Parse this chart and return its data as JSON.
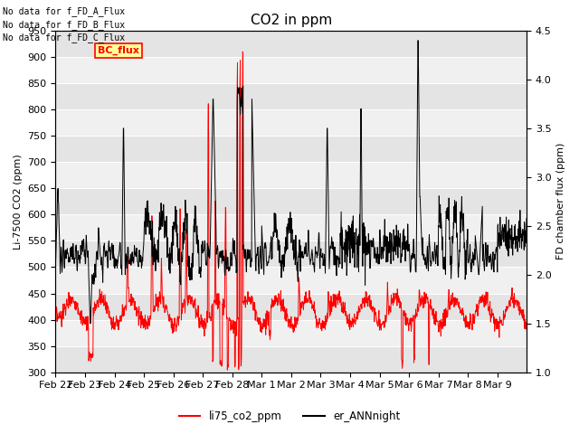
{
  "title": "CO2 in ppm",
  "ylabel_left": "Li-7500 CO2 (ppm)",
  "ylabel_right": "FD chamber flux (ppm)",
  "ylim_left": [
    300,
    950
  ],
  "ylim_right": [
    1.0,
    4.5
  ],
  "yticks_left": [
    300,
    350,
    400,
    450,
    500,
    550,
    600,
    650,
    700,
    750,
    800,
    850,
    900,
    950
  ],
  "yticks_right": [
    1.0,
    1.5,
    2.0,
    2.5,
    3.0,
    3.5,
    4.0,
    4.5
  ],
  "xtick_labels": [
    "Feb 22",
    "Feb 23",
    "Feb 24",
    "Feb 25",
    "Feb 26",
    "Feb 27",
    "Feb 28",
    "Mar 1",
    "Mar 2",
    "Mar 3",
    "Mar 4",
    "Mar 5",
    "Mar 6",
    "Mar 7",
    "Mar 8",
    "Mar 9"
  ],
  "color_red": "#ff0000",
  "color_black": "#000000",
  "legend_labels": [
    "li75_co2_ppm",
    "er_ANNnight"
  ],
  "annotation_lines": [
    "No data for f_FD_A_Flux",
    "No data for f_FD_B_Flux",
    "No data for f_FD_C_Flux"
  ],
  "annotation_box_label": "BC_flux",
  "annotation_box_color": "#ffff99",
  "annotation_box_edgecolor": "#ff0000",
  "annotation_text_color": "#ff0000",
  "plot_bg_color": "#f0f0f0",
  "stripe_color": "#dcdcdc",
  "title_fontsize": 11,
  "label_fontsize": 8,
  "tick_fontsize": 8,
  "figsize": [
    6.4,
    4.8
  ],
  "dpi": 100
}
